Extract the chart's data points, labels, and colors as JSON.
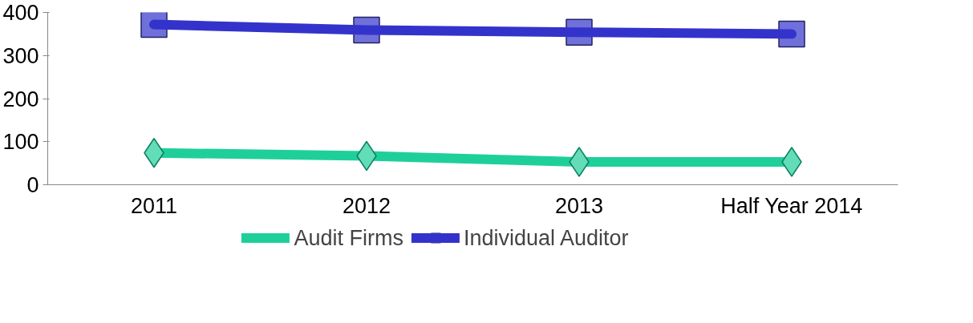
{
  "chart_data": {
    "type": "line",
    "categories": [
      "2011",
      "2012",
      "2013",
      "Half Year 2014"
    ],
    "series": [
      {
        "name": "Audit Firms",
        "color": "#1fcf9a",
        "marker": "diamond",
        "values": [
          74,
          67,
          53,
          53
        ]
      },
      {
        "name": "Individual Auditor",
        "color": "#3333cc",
        "marker": "square",
        "values": [
          372,
          359,
          354,
          350
        ]
      }
    ],
    "ylim": [
      0,
      400
    ],
    "yticks": [
      0,
      100,
      200,
      300,
      400
    ],
    "grid": false,
    "legend": "bottom"
  }
}
